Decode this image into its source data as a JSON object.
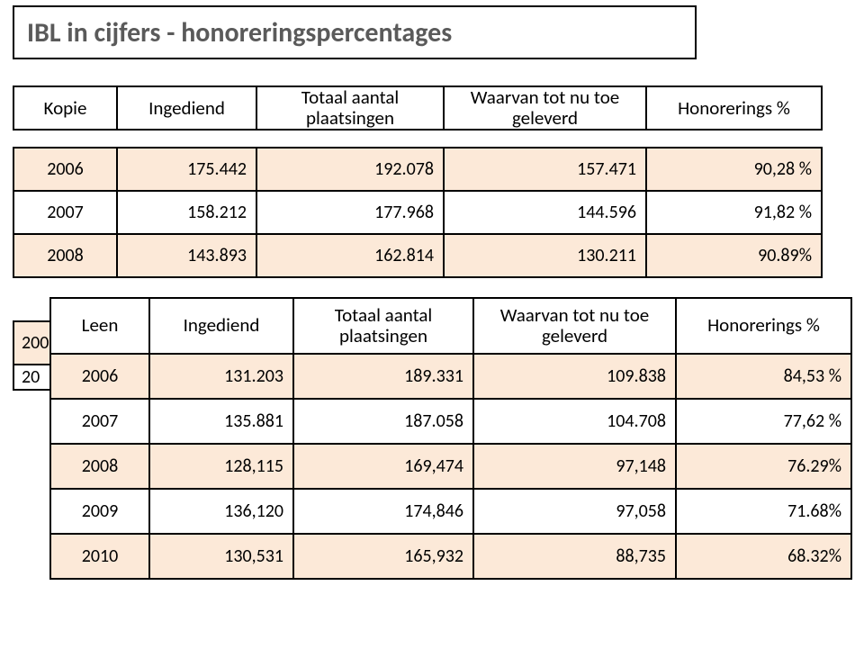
{
  "title": "IBL in cijfers - honoreringspercentages",
  "headers": {
    "col1_t1": "Kopie",
    "col1_t2": "Leen",
    "col2": "Ingediend",
    "col3": "Totaal aantal plaatsingen",
    "col4": "Waarvan tot nu toe geleverd",
    "col5": "Honorerings %"
  },
  "t1": {
    "rows": [
      {
        "yr": "2006",
        "c1": "175.442",
        "c2": "192.078",
        "c3": "157.471",
        "c4": "90,28 %"
      },
      {
        "yr": "2007",
        "c1": "158.212",
        "c2": "177.968",
        "c3": "144.596",
        "c4": "91,82 %"
      },
      {
        "yr": "2008",
        "c1": "143.893",
        "c2": "162.814",
        "c3": "130.211",
        "c4": "90.89%"
      }
    ],
    "stub_rows": [
      {
        "yr": "200"
      },
      {
        "yr": "20"
      }
    ]
  },
  "t2": {
    "rows": [
      {
        "yr": "2006",
        "c1": "131.203",
        "c2": "189.331",
        "c3": "109.838",
        "c4": "84,53 %"
      },
      {
        "yr": "2007",
        "c1": "135.881",
        "c2": "187.058",
        "c3": "104.708",
        "c4": "77,62 %"
      },
      {
        "yr": "2008",
        "c1": "128,115",
        "c2": "169,474",
        "c3": "97,148",
        "c4": "76.29%"
      },
      {
        "yr": "2009",
        "c1": "136,120",
        "c2": "174,846",
        "c3": "97,058",
        "c4": "71.68%"
      },
      {
        "yr": "2010",
        "c1": "130,531",
        "c2": "165,932",
        "c3": "88,735",
        "c4": "68.32%"
      }
    ]
  },
  "style": {
    "row_even_bg": "#fce9d8",
    "row_odd_bg": "#ffffff",
    "border_color": "#000000",
    "title_color": "#5a5a5a"
  }
}
